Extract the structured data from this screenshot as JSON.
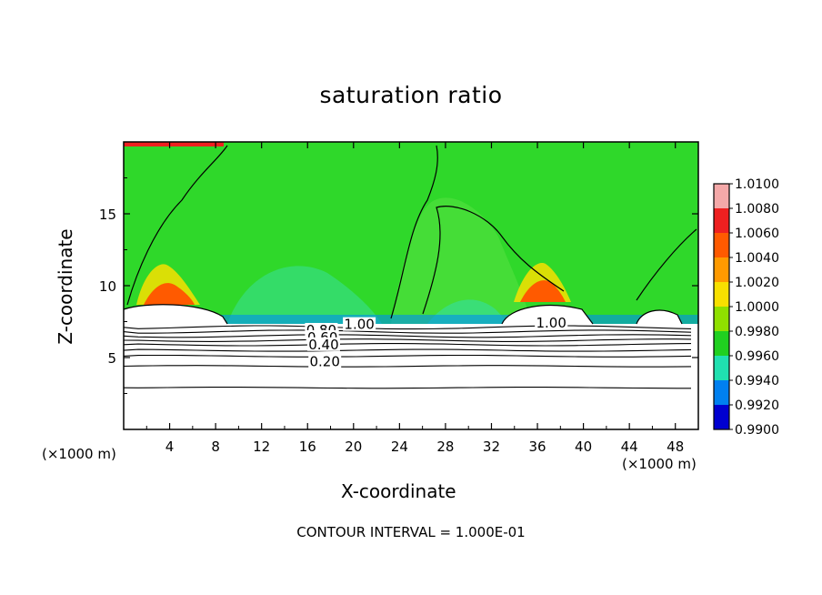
{
  "chart_data": {
    "type": "heatmap",
    "title": "saturation ratio",
    "xlabel": "X-coordinate",
    "ylabel": "Z-coordinate",
    "x_unit": "(×1000 m)",
    "xlim": [
      0,
      50
    ],
    "ylim": [
      0,
      20
    ],
    "x_ticks": [
      "4",
      "8",
      "12",
      "16",
      "20",
      "24",
      "28",
      "32",
      "36",
      "40",
      "44",
      "48"
    ],
    "y_ticks": [
      "5",
      "10",
      "15"
    ],
    "colorbar": {
      "levels": [
        "1.0100",
        "1.0080",
        "1.0060",
        "1.0040",
        "1.0020",
        "1.0000",
        "0.9980",
        "0.9960",
        "0.9940",
        "0.9920",
        "0.9900"
      ],
      "colors": [
        "#f4a8a8",
        "#ee2020",
        "#ff5a00",
        "#ff9a00",
        "#f8e000",
        "#90e000",
        "#20d020",
        "#20e0b0",
        "#0080f0",
        "#0000d0",
        "#500090"
      ]
    },
    "contour_labels": [
      {
        "text": "1.00",
        "x": 20.5,
        "z": 7.3
      },
      {
        "text": "1.00",
        "x": 37.2,
        "z": 7.4
      },
      {
        "text": "0.80",
        "x": 17.2,
        "z": 6.9
      },
      {
        "text": "0.60",
        "x": 17.3,
        "z": 6.4
      },
      {
        "text": "0.40",
        "x": 17.4,
        "z": 5.9
      },
      {
        "text": "0.20",
        "x": 17.5,
        "z": 4.7
      }
    ],
    "contour_levels_z": [
      2.9,
      4.4,
      5.1,
      5.5,
      5.9,
      6.2,
      6.5,
      6.8,
      7.1
    ],
    "footer": "CONTOUR INTERVAL = 1.000E-01"
  }
}
